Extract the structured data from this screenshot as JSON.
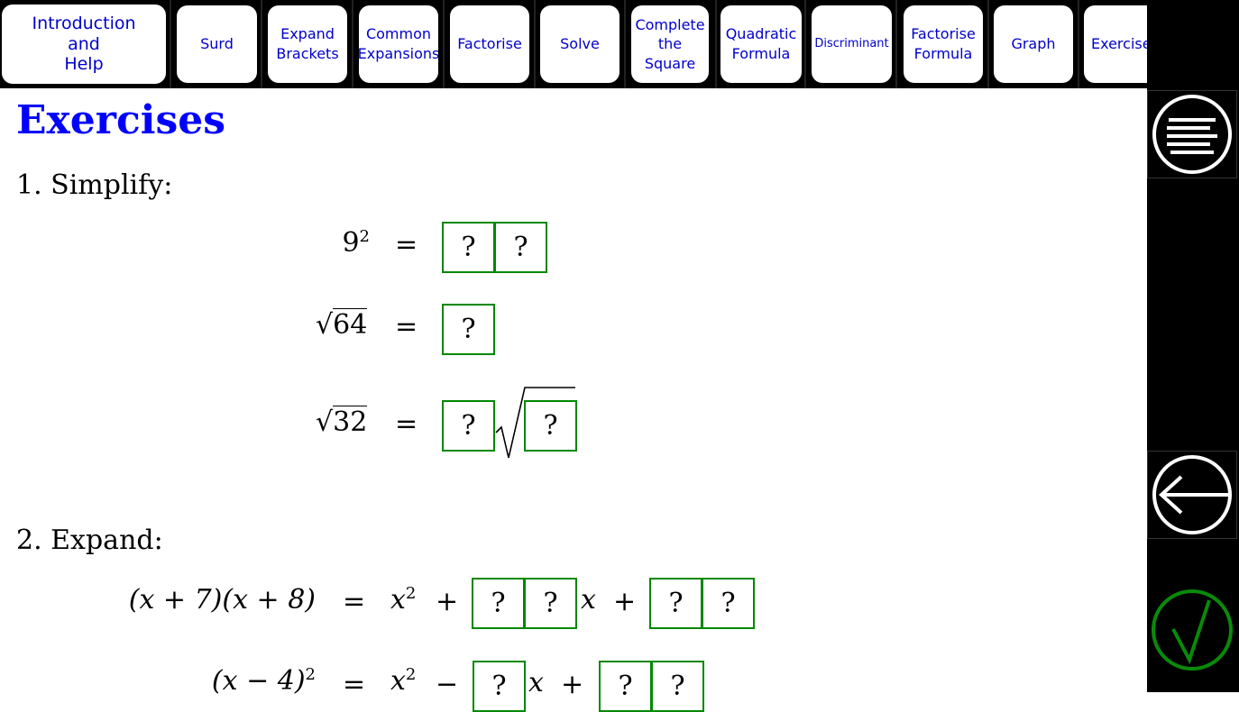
{
  "nav": {
    "tabs": [
      {
        "label": "Introduction\nand\nHelp"
      },
      {
        "label": "Surd"
      },
      {
        "label": "Expand\nBrackets"
      },
      {
        "label": "Common\nExpansions"
      },
      {
        "label": "Factorise"
      },
      {
        "label": "Solve"
      },
      {
        "label": "Complete\nthe\nSquare"
      },
      {
        "label": "Quadratic\nFormula"
      },
      {
        "label": "Discriminant"
      },
      {
        "label": "Factorise\nFormula"
      },
      {
        "label": "Graph"
      },
      {
        "label": "Exercise"
      }
    ]
  },
  "progress": "0%",
  "sidebar": {
    "menu_icon": "menu-lines-icon",
    "back_icon": "arrow-left-icon",
    "check_icon": "checkmark-icon",
    "check_color": "#0a8a0a"
  },
  "title": "Exercises",
  "q1": {
    "label": "1. Simplify:",
    "placeholder": "?"
  },
  "q2": {
    "label": "2. Expand:"
  },
  "eq": {
    "equals": "=",
    "a1": "9",
    "a1exp": "2",
    "a2": "64",
    "a3": "32",
    "b1": "(x + 7)(x + 8)",
    "b2": "(x − 4)",
    "b2exp": "2",
    "x2": "x",
    "x2exp": "2",
    "plus": "+",
    "minus": "−",
    "x": "x"
  }
}
